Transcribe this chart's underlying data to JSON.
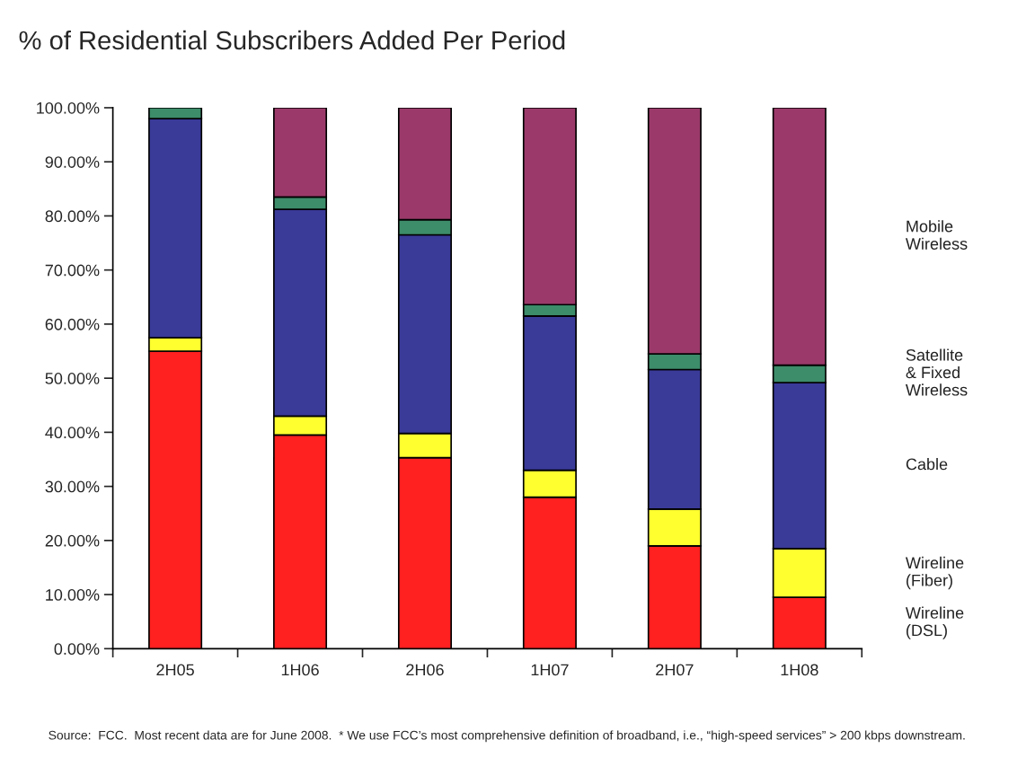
{
  "chart_data": {
    "type": "bar",
    "stacked": true,
    "title": "% of Residential Subscribers Added Per Period",
    "categories": [
      "2H05",
      "1H06",
      "2H06",
      "1H07",
      "2H07",
      "1H08"
    ],
    "series": [
      {
        "name": "Wireline\n(DSL)",
        "color": "#ff2020",
        "values": [
          55.0,
          39.5,
          35.3,
          28.0,
          19.0,
          9.5
        ]
      },
      {
        "name": "Wireline\n(Fiber)",
        "color": "#ffff30",
        "values": [
          2.5,
          3.5,
          4.5,
          5.0,
          6.8,
          9.0
        ]
      },
      {
        "name": "Cable",
        "color": "#3a3a99",
        "values": [
          40.5,
          38.2,
          36.7,
          28.5,
          25.8,
          30.7
        ]
      },
      {
        "name": "Satellite\n& Fixed\nWireless",
        "color": "#3d8c6a",
        "values": [
          2.0,
          2.3,
          2.8,
          2.1,
          2.9,
          3.2
        ]
      },
      {
        "name": "Mobile\nWireless",
        "color": "#9b3a6a",
        "values": [
          0.0,
          16.5,
          20.7,
          36.4,
          45.5,
          47.6
        ]
      }
    ],
    "ylim": [
      0,
      100
    ],
    "yticks": [
      {
        "value": 0,
        "label": "0.00%"
      },
      {
        "value": 10,
        "label": "10.00%"
      },
      {
        "value": 20,
        "label": "20.00%"
      },
      {
        "value": 30,
        "label": "30.00%"
      },
      {
        "value": 40,
        "label": "40.00%"
      },
      {
        "value": 50,
        "label": "50.00%"
      },
      {
        "value": 60,
        "label": "60.00%"
      },
      {
        "value": 70,
        "label": "70.00%"
      },
      {
        "value": 80,
        "label": "80.00%"
      },
      {
        "value": 90,
        "label": "90.00%"
      },
      {
        "value": 100,
        "label": "100.00%"
      }
    ],
    "grid": false,
    "annotations": [
      "Source:  FCC.  Most recent data are for June 2008.  * We use FCC’s most comprehensive definition of broadband, i.e., “high-speed services” > 200 kbps downstream."
    ]
  }
}
